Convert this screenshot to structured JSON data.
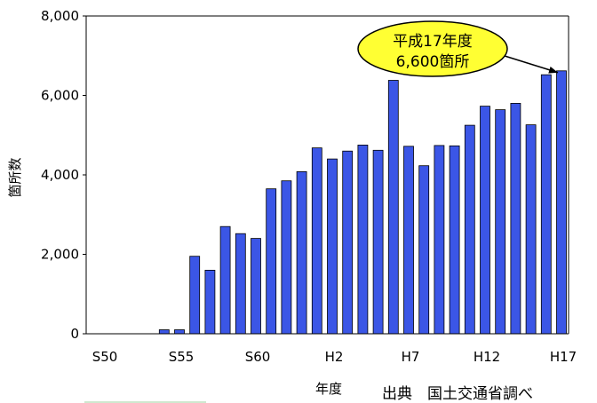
{
  "chart_data": {
    "type": "bar",
    "categories": [
      "S50",
      "S51",
      "S52",
      "S53",
      "S54",
      "S55",
      "S56",
      "S57",
      "S58",
      "S59",
      "S60",
      "S61",
      "S62",
      "S63",
      "H1",
      "H2",
      "H3",
      "H4",
      "H5",
      "H6",
      "H7",
      "H8",
      "H9",
      "H10",
      "H11",
      "H12",
      "H13",
      "H14",
      "H15",
      "H16",
      "H17"
    ],
    "values": [
      0,
      0,
      0,
      0,
      100,
      100,
      1950,
      1600,
      2700,
      2520,
      2400,
      3650,
      3850,
      4080,
      4680,
      4400,
      4600,
      4750,
      4620,
      6380,
      4720,
      4230,
      4740,
      4730,
      5250,
      5730,
      5640,
      5800,
      5260,
      6520,
      6620
    ],
    "x_tick_labels": [
      "S50",
      "S55",
      "S60",
      "H2",
      "H7",
      "H12",
      "H17"
    ],
    "y_tick_labels": [
      "0",
      "2,000",
      "4,000",
      "6,000",
      "8,000"
    ],
    "ylim": [
      0,
      8000
    ],
    "xlabel": "年度",
    "ylabel": "箇所数",
    "annotation": {
      "line1": "平成17年度",
      "line2": "6,600箇所",
      "target_category": "H17"
    },
    "source_note": "出典　国土交通省調べ",
    "grid": false,
    "bar_color": "#3b56e6",
    "callout_color": "#ffff33"
  }
}
